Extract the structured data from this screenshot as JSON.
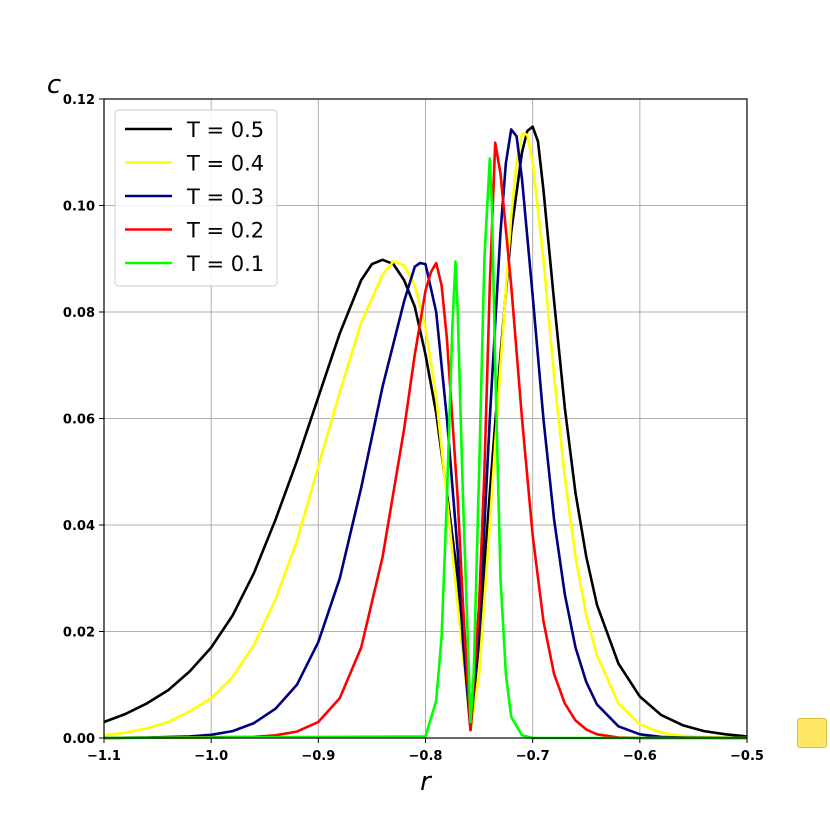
{
  "chart_data": {
    "type": "line",
    "xlabel": "r",
    "ylabel": "c",
    "xlim": [
      -1.1,
      -0.5
    ],
    "ylim": [
      0.0,
      0.12
    ],
    "xticks": [
      "−1.1",
      "−1.0",
      "−0.9",
      "−0.8",
      "−0.7",
      "−0.6",
      "−0.5"
    ],
    "yticks": [
      "0.00",
      "0.02",
      "0.04",
      "0.06",
      "0.08",
      "0.10",
      "0.12"
    ],
    "grid": true,
    "legend": "top-left",
    "series": [
      {
        "name": "T = 0.5",
        "color": "#000000",
        "x": [
          -1.1,
          -1.08,
          -1.06,
          -1.04,
          -1.02,
          -1.0,
          -0.98,
          -0.96,
          -0.94,
          -0.92,
          -0.9,
          -0.88,
          -0.86,
          -0.85,
          -0.84,
          -0.83,
          -0.82,
          -0.81,
          -0.8,
          -0.79,
          -0.78,
          -0.77,
          -0.765,
          -0.758,
          -0.75,
          -0.745,
          -0.74,
          -0.73,
          -0.72,
          -0.71,
          -0.705,
          -0.7,
          -0.695,
          -0.69,
          -0.68,
          -0.67,
          -0.66,
          -0.65,
          -0.64,
          -0.62,
          -0.6,
          -0.58,
          -0.56,
          -0.54,
          -0.52,
          -0.5
        ],
        "y": [
          0.003,
          0.0045,
          0.0065,
          0.009,
          0.0125,
          0.017,
          0.023,
          0.031,
          0.041,
          0.052,
          0.064,
          0.076,
          0.086,
          0.089,
          0.0898,
          0.089,
          0.086,
          0.081,
          0.072,
          0.061,
          0.046,
          0.03,
          0.018,
          0.0018,
          0.018,
          0.032,
          0.046,
          0.072,
          0.095,
          0.11,
          0.114,
          0.1148,
          0.112,
          0.103,
          0.082,
          0.062,
          0.046,
          0.034,
          0.025,
          0.014,
          0.0078,
          0.0043,
          0.0024,
          0.0013,
          0.0007,
          0.0003
        ]
      },
      {
        "name": "T = 0.4",
        "color": "#ffff00",
        "x": [
          -1.1,
          -1.08,
          -1.06,
          -1.04,
          -1.02,
          -1.0,
          -0.98,
          -0.96,
          -0.94,
          -0.92,
          -0.9,
          -0.88,
          -0.86,
          -0.84,
          -0.83,
          -0.82,
          -0.81,
          -0.8,
          -0.79,
          -0.78,
          -0.77,
          -0.76,
          -0.758,
          -0.75,
          -0.74,
          -0.73,
          -0.72,
          -0.715,
          -0.71,
          -0.705,
          -0.7,
          -0.69,
          -0.68,
          -0.67,
          -0.66,
          -0.65,
          -0.64,
          -0.62,
          -0.6,
          -0.58,
          -0.56,
          -0.54,
          -0.52,
          -0.5
        ],
        "y": [
          0.0005,
          0.001,
          0.0018,
          0.003,
          0.005,
          0.0075,
          0.0115,
          0.0175,
          0.026,
          0.037,
          0.051,
          0.065,
          0.078,
          0.087,
          0.0895,
          0.0888,
          0.085,
          0.077,
          0.064,
          0.045,
          0.025,
          0.006,
          0.0015,
          0.012,
          0.04,
          0.07,
          0.098,
          0.108,
          0.1135,
          0.1133,
          0.108,
          0.09,
          0.068,
          0.049,
          0.034,
          0.023,
          0.0155,
          0.0065,
          0.0026,
          0.001,
          0.0004,
          0.0002,
          0.0001,
          0.0
        ]
      },
      {
        "name": "T = 0.3",
        "color": "#00007f",
        "x": [
          -1.1,
          -1.06,
          -1.02,
          -1.0,
          -0.98,
          -0.96,
          -0.94,
          -0.92,
          -0.9,
          -0.88,
          -0.86,
          -0.84,
          -0.82,
          -0.81,
          -0.805,
          -0.8,
          -0.79,
          -0.78,
          -0.77,
          -0.765,
          -0.758,
          -0.75,
          -0.74,
          -0.73,
          -0.725,
          -0.72,
          -0.715,
          -0.71,
          -0.7,
          -0.69,
          -0.68,
          -0.67,
          -0.66,
          -0.65,
          -0.64,
          -0.62,
          -0.6,
          -0.58,
          -0.56,
          -0.5
        ],
        "y": [
          0.0,
          0.0001,
          0.0003,
          0.0006,
          0.0013,
          0.0028,
          0.0055,
          0.01,
          0.018,
          0.03,
          0.047,
          0.066,
          0.082,
          0.0885,
          0.0892,
          0.089,
          0.08,
          0.06,
          0.035,
          0.018,
          0.0015,
          0.02,
          0.06,
          0.095,
          0.108,
          0.1143,
          0.113,
          0.105,
          0.083,
          0.06,
          0.041,
          0.027,
          0.017,
          0.0105,
          0.0063,
          0.0022,
          0.0007,
          0.0002,
          0.0001,
          0.0
        ]
      },
      {
        "name": "T = 0.2",
        "color": "#ff0000",
        "x": [
          -1.1,
          -0.96,
          -0.94,
          -0.92,
          -0.9,
          -0.88,
          -0.86,
          -0.84,
          -0.82,
          -0.81,
          -0.8,
          -0.795,
          -0.79,
          -0.785,
          -0.78,
          -0.77,
          -0.765,
          -0.758,
          -0.75,
          -0.745,
          -0.74,
          -0.735,
          -0.73,
          -0.72,
          -0.71,
          -0.7,
          -0.69,
          -0.68,
          -0.67,
          -0.66,
          -0.65,
          -0.64,
          -0.62,
          -0.6,
          -0.5
        ],
        "y": [
          0.0,
          0.0002,
          0.0005,
          0.0012,
          0.003,
          0.0075,
          0.017,
          0.034,
          0.058,
          0.072,
          0.084,
          0.0875,
          0.0892,
          0.085,
          0.075,
          0.045,
          0.025,
          0.0015,
          0.025,
          0.05,
          0.085,
          0.1118,
          0.106,
          0.085,
          0.06,
          0.038,
          0.022,
          0.012,
          0.0065,
          0.0033,
          0.0016,
          0.0007,
          0.0001,
          0.0,
          0.0
        ]
      },
      {
        "name": "T = 0.1",
        "color": "#00ff00",
        "x": [
          -1.1,
          -0.8,
          -0.79,
          -0.785,
          -0.78,
          -0.775,
          -0.772,
          -0.77,
          -0.765,
          -0.76,
          -0.758,
          -0.755,
          -0.75,
          -0.745,
          -0.74,
          -0.738,
          -0.735,
          -0.73,
          -0.725,
          -0.72,
          -0.71,
          -0.7,
          -0.5
        ],
        "y": [
          0.0,
          0.0003,
          0.007,
          0.019,
          0.045,
          0.077,
          0.0895,
          0.08,
          0.045,
          0.015,
          0.003,
          0.012,
          0.05,
          0.09,
          0.1088,
          0.1,
          0.07,
          0.03,
          0.012,
          0.004,
          0.0005,
          0.0,
          0.0
        ]
      }
    ]
  }
}
